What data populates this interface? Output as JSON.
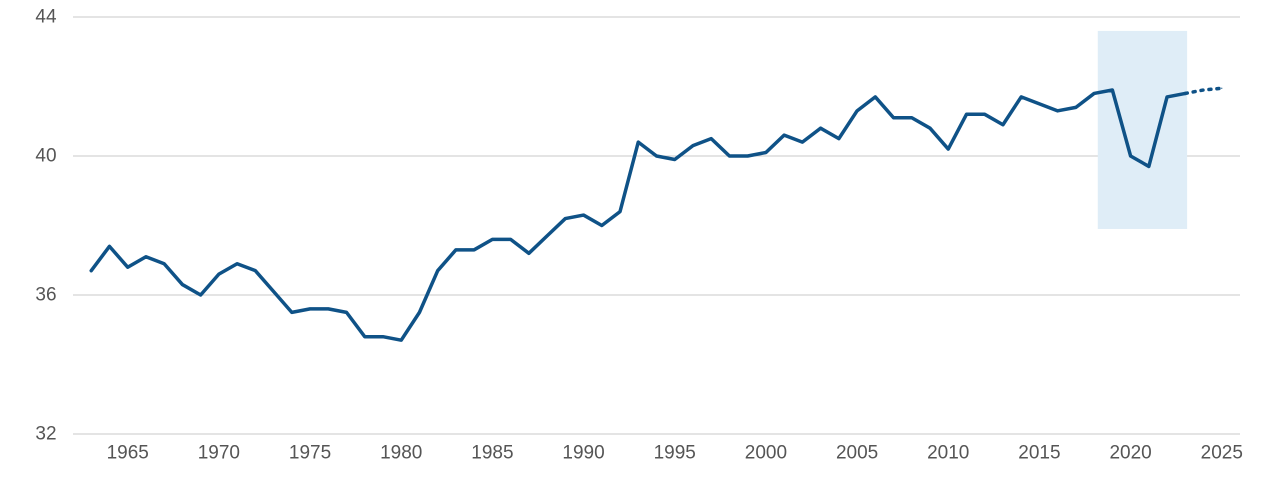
{
  "chart_data": {
    "type": "line",
    "title": "",
    "xlabel": "",
    "ylabel": "",
    "xlim": [
      1962,
      2026
    ],
    "ylim": [
      32,
      44
    ],
    "grid": "horizontal",
    "legend": "none",
    "y_ticks": [
      "32",
      "36",
      "40",
      "44"
    ],
    "x_ticks": [
      "1965",
      "1970",
      "1975",
      "1980",
      "1985",
      "1990",
      "1995",
      "2000",
      "2005",
      "2010",
      "2015",
      "2020",
      "2025"
    ],
    "colors": {
      "line": "#0f5287",
      "highlight": "#dfedf7",
      "grid": "#c8c8c8",
      "text": "#555555"
    },
    "highlight_band": {
      "x": [
        2018.2,
        2023.1
      ],
      "y": [
        37.9,
        43.6
      ]
    },
    "series": [
      {
        "style": "solid",
        "points": [
          [
            1963,
            36.7
          ],
          [
            1964,
            37.4
          ],
          [
            1965,
            36.8
          ],
          [
            1966,
            37.1
          ],
          [
            1967,
            36.9
          ],
          [
            1968,
            36.3
          ],
          [
            1969,
            36.0
          ],
          [
            1970,
            36.6
          ],
          [
            1971,
            36.9
          ],
          [
            1972,
            36.7
          ],
          [
            1973,
            36.1
          ],
          [
            1974,
            35.5
          ],
          [
            1975,
            35.6
          ],
          [
            1976,
            35.6
          ],
          [
            1977,
            35.5
          ],
          [
            1978,
            34.8
          ],
          [
            1979,
            34.8
          ],
          [
            1980,
            34.7
          ],
          [
            1981,
            35.5
          ],
          [
            1982,
            36.7
          ],
          [
            1983,
            37.3
          ],
          [
            1984,
            37.3
          ],
          [
            1985,
            37.6
          ],
          [
            1986,
            37.6
          ],
          [
            1987,
            37.2
          ],
          [
            1988,
            37.7
          ],
          [
            1989,
            38.2
          ],
          [
            1990,
            38.3
          ],
          [
            1991,
            38.0
          ],
          [
            1992,
            38.4
          ],
          [
            1993,
            40.4
          ],
          [
            1994,
            40.0
          ],
          [
            1995,
            39.9
          ],
          [
            1996,
            40.3
          ],
          [
            1997,
            40.5
          ],
          [
            1998,
            40.0
          ],
          [
            1999,
            40.0
          ],
          [
            2000,
            40.1
          ],
          [
            2001,
            40.6
          ],
          [
            2002,
            40.4
          ],
          [
            2003,
            40.8
          ],
          [
            2004,
            40.5
          ],
          [
            2005,
            41.3
          ],
          [
            2006,
            41.7
          ],
          [
            2007,
            41.1
          ],
          [
            2008,
            41.1
          ],
          [
            2009,
            40.8
          ],
          [
            2010,
            40.2
          ],
          [
            2011,
            41.2
          ],
          [
            2012,
            41.2
          ],
          [
            2013,
            40.9
          ],
          [
            2014,
            41.7
          ],
          [
            2015,
            41.5
          ],
          [
            2016,
            41.3
          ],
          [
            2017,
            41.4
          ],
          [
            2018,
            41.8
          ],
          [
            2019,
            41.9
          ],
          [
            2020,
            40.0
          ],
          [
            2021,
            39.7
          ],
          [
            2022,
            41.7
          ],
          [
            2023,
            41.8
          ]
        ]
      },
      {
        "style": "dotted",
        "points": [
          [
            2023,
            41.8
          ],
          [
            2024,
            41.9
          ],
          [
            2025,
            41.95
          ]
        ]
      }
    ]
  }
}
